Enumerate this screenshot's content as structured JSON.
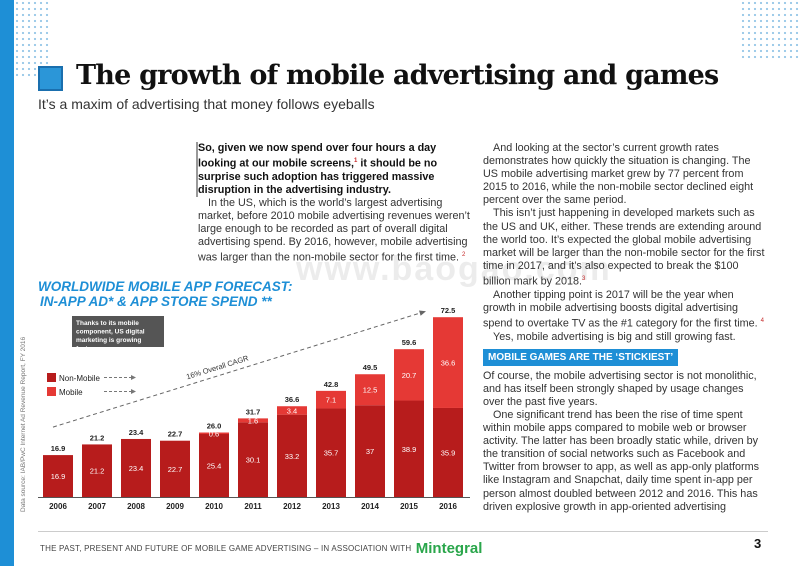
{
  "header": {
    "title": "The growth of mobile advertising and games",
    "subtitle": "It’s a maxim of advertising that money follows eyeballs"
  },
  "column1": {
    "lead": "So, given we now spend over four hours a day looking at our mobile screens,",
    "lead_ref": "1",
    "lead_rest": " it should be no surprise such adoption has triggered massive disruption in the advertising industry.",
    "para1": "In the US, which is the world’s largest advertising market, before 2010 mobile advertising revenues weren’t large enough to be recorded as part of overall digital advertising spend. By 2016, however, mobile advertising was larger than the non-mobile sector for the first time.",
    "para1_ref": "2"
  },
  "column2": {
    "para1": "And looking at the sector’s current growth rates demonstrates how quickly the situation is changing. The US mobile advertising market grew by 77 percent from 2015 to 2016, while the non-mobile sector declined eight percent over the same period.",
    "para2": "This isn’t just happening in developed markets such as the US and UK, either. These trends are extending around the world too. It’s expected the global mobile advertising market will be larger than the non-mobile sector for the first time in 2017, and it’s also expected to break the $100 billion mark by 2018.",
    "para2_ref": "3",
    "para3": "Another tipping point is 2017 will be the year when growth in mobile advertising boosts digital advertising spend to overtake TV as the #1 category for the first time.",
    "para3_ref": "4",
    "para4": "Yes, mobile advertising is big and still growing fast.",
    "section_heading": "MOBILE GAMES ARE THE ‘STICKIEST’",
    "para5": "Of course, the mobile advertising sector is not monolithic, and has itself been strongly shaped by usage changes over the past five years.",
    "para6": "One significant trend has been the rise of time spent within mobile apps compared to mobile web or browser activity. The latter has been broadly static while, driven by the transition of social networks such as Facebook and Twitter from browser to app, as well as app-only platforms like Instagram and Snapchat, daily time spent in-app per person almost doubled between 2012 and 2016. This has driven explosive growth in app-oriented advertising"
  },
  "chart_heading": {
    "line1": "WORLDWIDE MOBILE APP FORECAST:",
    "line2": "IN-APP AD* & APP STORE SPEND **"
  },
  "source_note": "Data source: IAB/PwC Internet Ad Revenue Report, FY 2016",
  "watermark": "www.baogao.com",
  "chart_data": {
    "type": "bar",
    "stacked": true,
    "categories": [
      "2006",
      "2007",
      "2008",
      "2009",
      "2010",
      "2011",
      "2012",
      "2013",
      "2014",
      "2015",
      "2016"
    ],
    "series": [
      {
        "name": "Non-Mobile",
        "values": [
          16.9,
          21.2,
          23.4,
          22.7,
          25.4,
          30.1,
          33.2,
          35.7,
          37.0,
          38.9,
          35.9
        ],
        "color": "#b71c1c"
      },
      {
        "name": "Mobile",
        "values": [
          null,
          null,
          null,
          null,
          0.6,
          1.6,
          3.4,
          7.1,
          12.5,
          20.7,
          36.6
        ],
        "color": "#e53935"
      }
    ],
    "totals": [
      "16.9",
      "21.2",
      "23.4",
      "22.7",
      "26.0",
      "31.7",
      "36.6",
      "42.8",
      "49.5",
      "59.6",
      "72.5"
    ],
    "annotation": "Thanks to its mobile component, US digital marketing is growing fast",
    "trend_label": "16% Overall CAGR",
    "ylim": [
      0,
      75
    ],
    "legend_position": "left"
  },
  "footer": {
    "text": "THE PAST, PRESENT AND FUTURE OF MOBILE GAME ADVERTISING – IN ASSOCIATION WITH",
    "brand": "Mintegral",
    "page": "3"
  }
}
